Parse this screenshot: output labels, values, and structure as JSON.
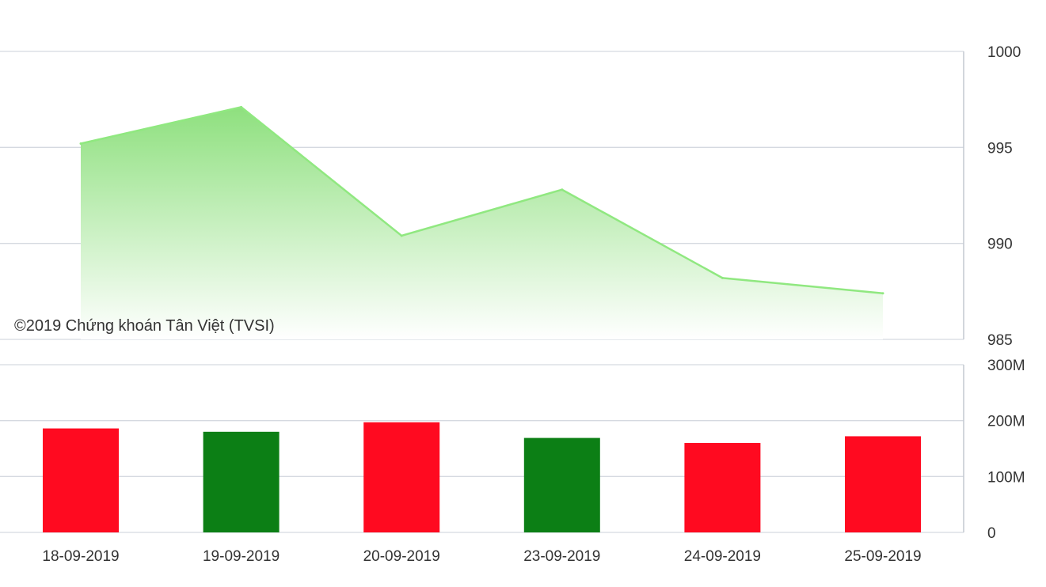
{
  "copyright": "©2019 Chứng khoán Tân Việt (TVSI)",
  "colors": {
    "line": "#90e880",
    "area_top": "#8ee07e",
    "area_bottom": "#ffffff",
    "up_bar": "#ff0a20",
    "down_bar": "#0c7f15"
  },
  "chart_data": [
    {
      "type": "area",
      "x": [
        "18-09-2019",
        "19-09-2019",
        "20-09-2019",
        "23-09-2019",
        "24-09-2019",
        "25-09-2019"
      ],
      "values": [
        995.2,
        997.1,
        990.4,
        992.8,
        988.2,
        987.4
      ],
      "ylim": [
        985,
        1000
      ],
      "yticks": [
        {
          "value": 1000,
          "label": "1000"
        },
        {
          "value": 995,
          "label": "995"
        },
        {
          "value": 990,
          "label": "990"
        },
        {
          "value": 985,
          "label": "985"
        }
      ],
      "axis_position": "right",
      "grid": true,
      "legend": "none"
    },
    {
      "type": "bar",
      "categories": [
        "18-09-2019",
        "19-09-2019",
        "20-09-2019",
        "23-09-2019",
        "24-09-2019",
        "25-09-2019"
      ],
      "values": [
        186,
        180,
        197,
        169,
        160,
        172
      ],
      "unit_note": "millions",
      "bar_color_keys": [
        "up_bar",
        "down_bar",
        "up_bar",
        "down_bar",
        "up_bar",
        "up_bar"
      ],
      "ylim": [
        0,
        300
      ],
      "yticks": [
        {
          "value": 300,
          "label": "300M"
        },
        {
          "value": 200,
          "label": "200M"
        },
        {
          "value": 100,
          "label": "100M"
        },
        {
          "value": 0,
          "label": "0"
        }
      ],
      "axis_position": "right",
      "grid": true,
      "legend": "none"
    }
  ]
}
